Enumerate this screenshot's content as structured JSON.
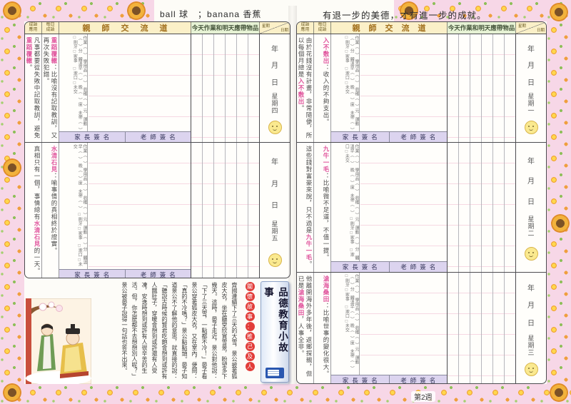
{
  "top": {
    "left_phrase": "ball 球　；banana 香蕉",
    "right_motto": "有退一步的美德，才有進一步的成就。"
  },
  "headers": {
    "usage": "成語應用",
    "idiom": "每日成語",
    "teacher": "親師交流道",
    "homework": "今天作業和明天應帶物品",
    "corner_top": "星期",
    "corner_bottom": "日期"
  },
  "labels": {
    "parent_sign": "家長簽名",
    "teacher_sign": "老師簽名",
    "year": "年",
    "month": "月",
    "day": "日"
  },
  "checklist": [
    "作業（　）",
    "學用品（　）",
    "收穫（　）元",
    "運動（　）分",
    "體溫早（　）",
    "晚（　）度",
    "未帶（　）",
    "□刷牙 □家事",
    "□漱口 □未交"
  ],
  "left_page": {
    "days": [
      {
        "weekday": "星期四",
        "usage_pre": "凡事都要從失敗中記取教訓，避免",
        "usage_hl": "重蹈覆轍",
        "usage_post": "。",
        "idiom_hl": "重蹈覆轍",
        "idiom_def": "：比喻沒有記取教訓，又再次失敗犯錯。"
      },
      {
        "weekday": "星期五",
        "usage_pre": "真相只有一個，事情總有",
        "usage_hl": "水清石見",
        "usage_post": "的一天。",
        "idiom_hl": "水清石見",
        "idiom_def": "：喻事情的真相終於證實。"
      }
    ]
  },
  "right_page": {
    "days": [
      {
        "weekday": "星期一",
        "usage_pre": "由於花錢沒有計畫，非常隨便，所以每個月總是",
        "usage_hl": "入不敷出",
        "usage_post": "。",
        "idiom_hl": "入不敷出",
        "idiom_def": "：收入的不夠支出。"
      },
      {
        "weekday": "星期二",
        "usage_pre": "這些錢對富豪來說，只不過是",
        "usage_hl": "九牛一毛",
        "usage_post": "。",
        "idiom_hl": "九牛一毛",
        "idiom_def": "：比喻微不足道，不值一提。"
      },
      {
        "weekday": "星期三",
        "usage_pre": "他離開海外多年後，返鄉探親，但已是",
        "usage_hl": "滄海桑田",
        "usage_post": "，人事全非。",
        "idiom_hl": "滄海桑田",
        "idiom_def": "：比喻世事的變化很大。"
      }
    ]
  },
  "story": {
    "ribbon": "品德教育小故事",
    "title": "關懷故事：推己及人",
    "body": "齊國連續下了三天的大雪，景公披著狐皮大衣，坐在廳堂欣賞雪景，盼望多下幾天。這時，晏子走近，景公對他說：「下了三天雪，一點都不冷！」晏子看景公穿著狐皮大衣，又在室內，便問：「真的不冷嗎？」景公點點頭。晏子知道景公不了解他的意思，就直接的說：「聽說古時候的賢君吃飽會想到或許有人餓肚子，穿暖會想到或許還有人受凍，安逸時想到或許有人很辛苦的生活。但，你怎麼都不去想想別人呢？」景公被晏子說得一句話也答不出來。"
  },
  "footer": {
    "week_label": "第2週"
  },
  "colors": {
    "highlight_pink": "#e0559d",
    "header_yellow": "#fbf0c8",
    "header_green": "#e6f2d4",
    "signature_band": "#dcd4ef",
    "badge_red": "#e23d39",
    "border_pink": "#f7d7e7"
  }
}
